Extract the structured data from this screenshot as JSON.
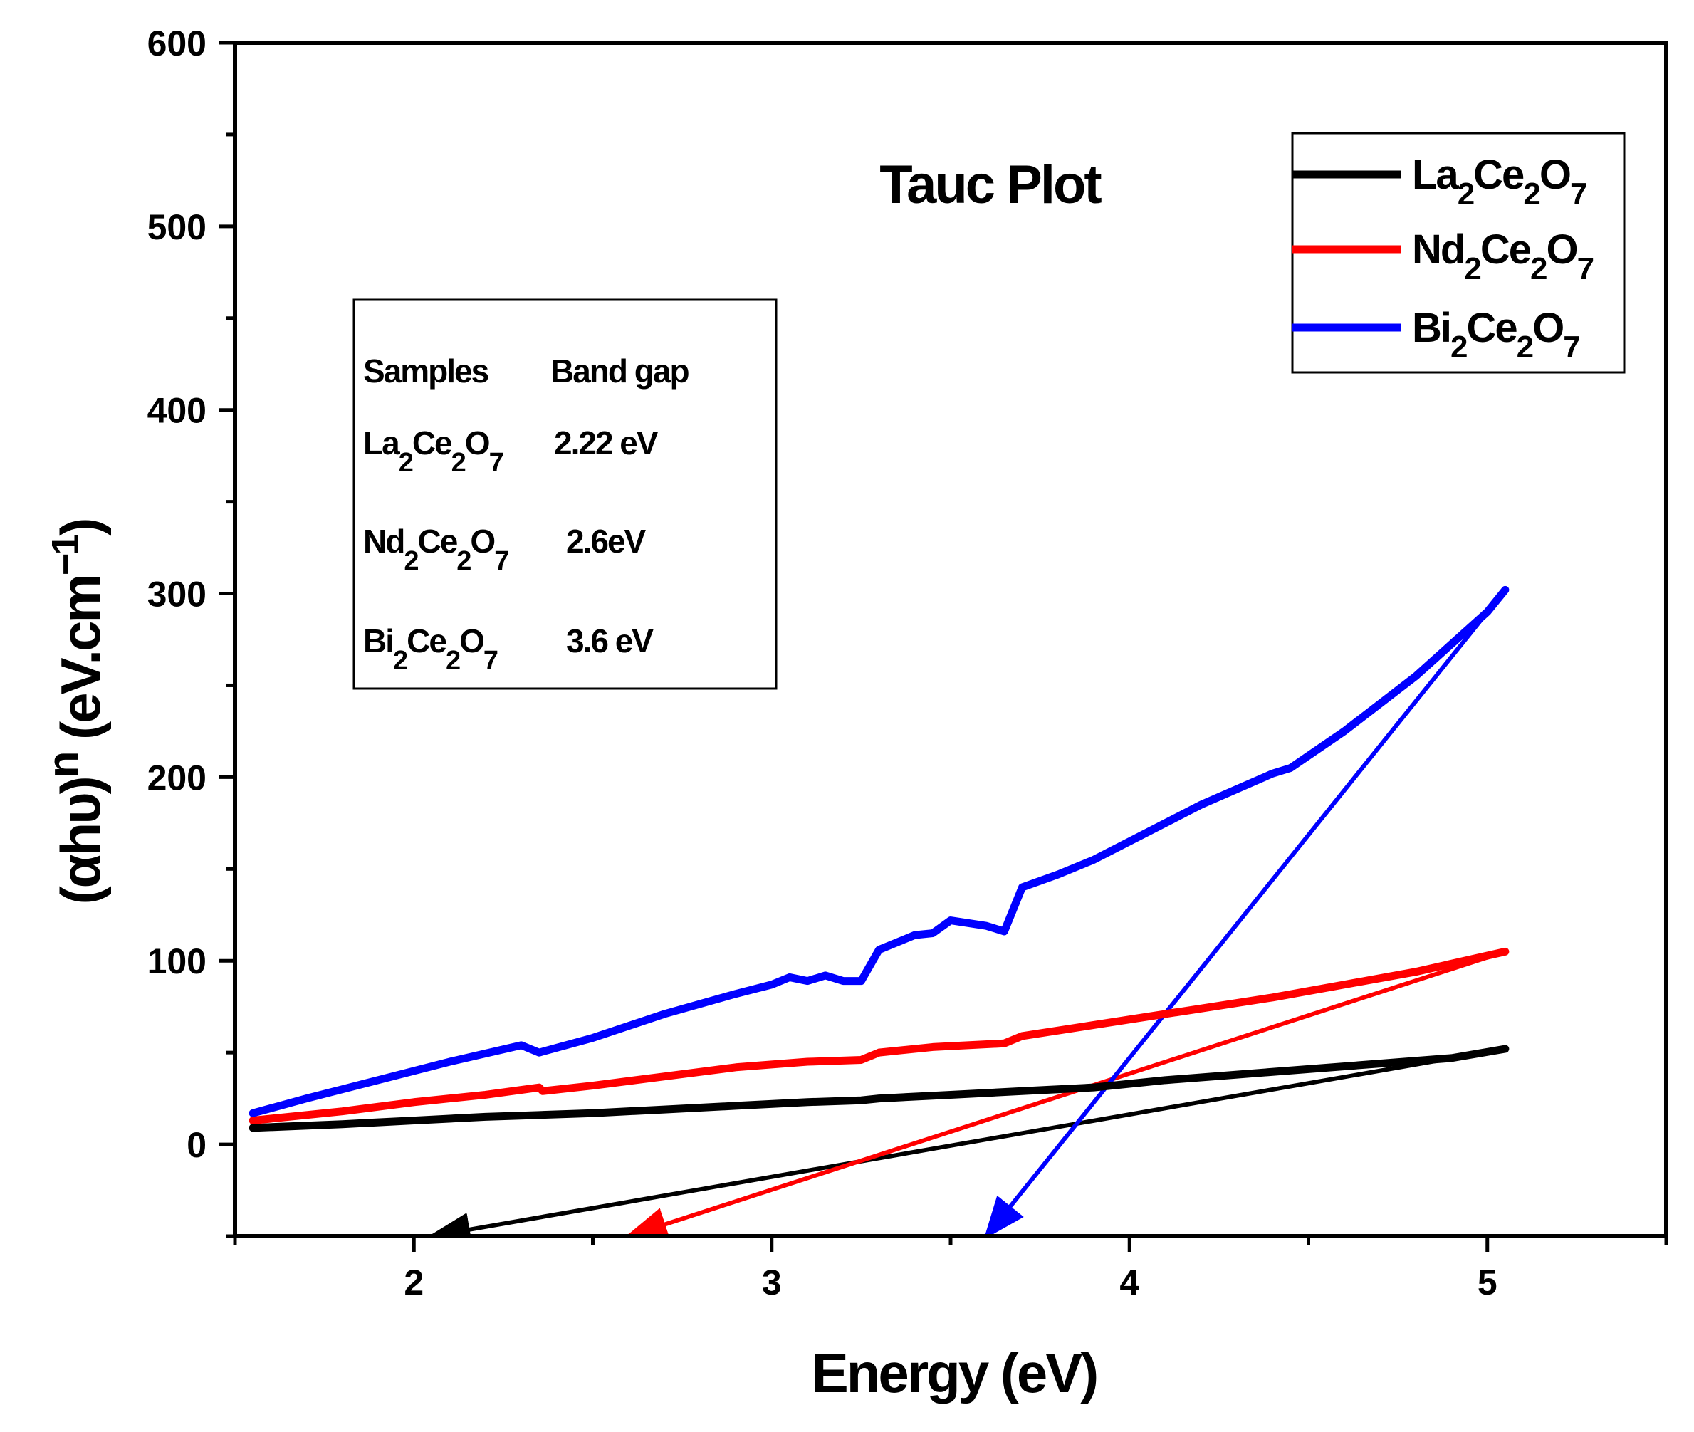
{
  "chart_data": {
    "type": "line",
    "title": "Tauc Plot",
    "xlabel": "Energy (eV)",
    "ylabel_parts": [
      "(αhυ)",
      "n",
      " (eV.cm",
      "−1",
      ")"
    ],
    "xlim": [
      1.5,
      5.5
    ],
    "ylim": [
      -50,
      600
    ],
    "x_ticks": [
      2,
      3,
      4,
      5
    ],
    "y_ticks": [
      0,
      100,
      200,
      300,
      400,
      500,
      600
    ],
    "grid": false,
    "legend_position": "top-right",
    "series": [
      {
        "name_parts": [
          "La",
          "2",
          "Ce",
          "2",
          "O",
          "7"
        ],
        "color": "#000000",
        "x": [
          1.55,
          1.8,
          2.0,
          2.2,
          2.35,
          2.5,
          2.7,
          2.9,
          3.1,
          3.25,
          3.3,
          3.5,
          3.7,
          3.9,
          4.1,
          4.3,
          4.5,
          4.7,
          4.9,
          5.05
        ],
        "y": [
          9,
          11,
          13,
          15,
          16,
          17,
          19,
          21,
          23,
          24,
          25,
          27,
          29,
          31,
          35,
          38,
          41,
          44,
          47,
          52
        ]
      },
      {
        "name_parts": [
          "Nd",
          "2",
          "Ce",
          "2",
          "O",
          "7"
        ],
        "color": "#ff0000",
        "x": [
          1.55,
          1.8,
          2.0,
          2.2,
          2.35,
          2.36,
          2.5,
          2.7,
          2.9,
          3.1,
          3.25,
          3.3,
          3.45,
          3.65,
          3.7,
          3.9,
          4.0,
          4.2,
          4.4,
          4.6,
          4.8,
          5.05
        ],
        "y": [
          13,
          18,
          23,
          27,
          31,
          29,
          32,
          37,
          42,
          45,
          46,
          50,
          53,
          55,
          59,
          65,
          68,
          74,
          80,
          87,
          94,
          105
        ]
      },
      {
        "name_parts": [
          "Bi",
          "2",
          "Ce",
          "2",
          "O",
          "7"
        ],
        "color": "#0000ff",
        "x": [
          1.55,
          1.7,
          1.9,
          2.1,
          2.3,
          2.35,
          2.5,
          2.7,
          2.9,
          3.0,
          3.05,
          3.1,
          3.15,
          3.2,
          3.25,
          3.3,
          3.4,
          3.45,
          3.5,
          3.6,
          3.65,
          3.7,
          3.8,
          3.9,
          4.0,
          4.2,
          4.4,
          4.45,
          4.6,
          4.8,
          5.0,
          5.05
        ],
        "y": [
          17,
          25,
          35,
          45,
          54,
          50,
          58,
          71,
          82,
          87,
          91,
          89,
          92,
          89,
          89,
          106,
          114,
          115,
          122,
          119,
          116,
          140,
          147,
          155,
          165,
          185,
          202,
          205,
          225,
          255,
          290,
          302
        ]
      }
    ],
    "tangent_lines": [
      {
        "color": "#000000",
        "x": [
          5.05,
          2.05
        ],
        "y": [
          52,
          -50
        ]
      },
      {
        "color": "#ff0000",
        "x": [
          5.05,
          2.6
        ],
        "y": [
          105,
          -50
        ]
      },
      {
        "color": "#0000ff",
        "x": [
          5.05,
          3.6
        ],
        "y": [
          302,
          -50
        ]
      }
    ],
    "annotation_table": {
      "header": [
        "Samples",
        "Band gap"
      ],
      "rows": [
        {
          "sample_parts": [
            "La",
            "2",
            "Ce",
            "2",
            "O",
            "7"
          ],
          "gap": "2.22 eV",
          "color": "#000000"
        },
        {
          "sample_parts": [
            "Nd",
            "2",
            "Ce",
            "2",
            "O",
            "7"
          ],
          "gap": "2.6eV",
          "color": "#ff0000"
        },
        {
          "sample_parts": [
            "Bi",
            "2",
            "Ce",
            "2",
            "O",
            "7"
          ],
          "gap": "3.6 eV",
          "color": "#0000ff"
        }
      ]
    }
  }
}
